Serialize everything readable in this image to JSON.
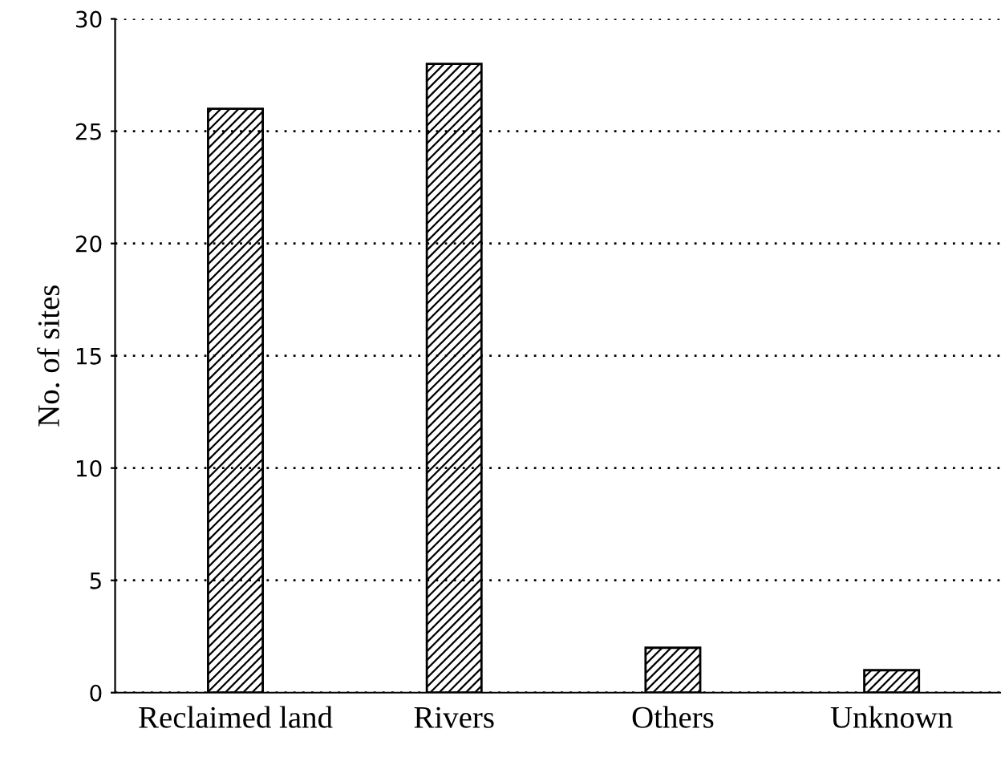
{
  "chart_data": {
    "type": "bar",
    "ylabel": "No. of sites",
    "categories": [
      "Reclaimed land",
      "Rivers",
      "Others",
      "Unknown"
    ],
    "values": [
      26,
      28,
      2,
      1
    ],
    "color": "#000000",
    "ylim": [
      0,
      30
    ],
    "yticks": [
      0,
      5,
      10,
      15,
      20,
      25,
      30
    ],
    "grid": "y"
  }
}
